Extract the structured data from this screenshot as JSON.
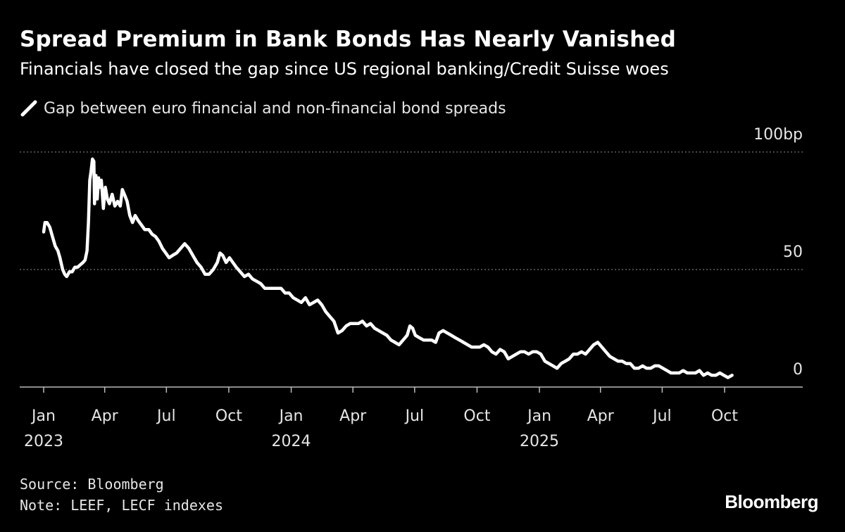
{
  "header": {
    "title": "Spread Premium in Bank Bonds Has Nearly Vanished",
    "subtitle": "Financials have closed the gap since US regional banking/Credit Suisse woes"
  },
  "footer": {
    "source": "Source: Bloomberg",
    "note": "Note: LEEF, LECF indexes",
    "brand": "Bloomberg"
  },
  "colors": {
    "background": "#000000",
    "line": "#ffffff",
    "grid": "#777777",
    "text": "#e6e6e6"
  },
  "chart_data": {
    "type": "line",
    "title": "Spread Premium in Bank Bonds Has Nearly Vanished",
    "subtitle": "Financials have closed the gap since US regional banking/Credit Suisse woes",
    "legend": "top-left",
    "grid": true,
    "ylim": [
      0,
      100
    ],
    "xlim": [
      "2023-01-01",
      "2025-12-01"
    ],
    "y_ticks": [
      {
        "value": 100,
        "label": "100bp"
      },
      {
        "value": 50,
        "label": "50"
      },
      {
        "value": 0,
        "label": "0"
      }
    ],
    "x_ticks": [
      {
        "date": "2023-01-01",
        "label": "Jan",
        "year": "2023"
      },
      {
        "date": "2023-04-01",
        "label": "Apr",
        "year": ""
      },
      {
        "date": "2023-07-01",
        "label": "Jul",
        "year": ""
      },
      {
        "date": "2023-10-01",
        "label": "Oct",
        "year": ""
      },
      {
        "date": "2024-01-01",
        "label": "Jan",
        "year": "2024"
      },
      {
        "date": "2024-04-01",
        "label": "Apr",
        "year": ""
      },
      {
        "date": "2024-07-01",
        "label": "Jul",
        "year": ""
      },
      {
        "date": "2024-10-01",
        "label": "Oct",
        "year": ""
      },
      {
        "date": "2025-01-01",
        "label": "Jan",
        "year": "2025"
      },
      {
        "date": "2025-04-01",
        "label": "Apr",
        "year": ""
      },
      {
        "date": "2025-07-01",
        "label": "Jul",
        "year": ""
      },
      {
        "date": "2025-10-01",
        "label": "Oct",
        "year": ""
      }
    ],
    "series": [
      {
        "name": "Gap between euro financial and non-financial bond spreads",
        "points": [
          [
            "2023-01-01",
            66
          ],
          [
            "2023-01-03",
            70
          ],
          [
            "2023-01-06",
            70
          ],
          [
            "2023-01-10",
            68
          ],
          [
            "2023-01-14",
            64
          ],
          [
            "2023-01-18",
            60
          ],
          [
            "2023-01-22",
            58
          ],
          [
            "2023-01-25",
            55
          ],
          [
            "2023-01-29",
            50
          ],
          [
            "2023-02-01",
            48
          ],
          [
            "2023-02-04",
            47
          ],
          [
            "2023-02-08",
            49
          ],
          [
            "2023-02-12",
            49
          ],
          [
            "2023-02-16",
            51
          ],
          [
            "2023-02-20",
            51
          ],
          [
            "2023-02-24",
            52
          ],
          [
            "2023-02-28",
            53
          ],
          [
            "2023-03-03",
            54
          ],
          [
            "2023-03-06",
            58
          ],
          [
            "2023-03-08",
            70
          ],
          [
            "2023-03-10",
            88
          ],
          [
            "2023-03-12",
            92
          ],
          [
            "2023-03-14",
            97
          ],
          [
            "2023-03-16",
            96
          ],
          [
            "2023-03-17",
            78
          ],
          [
            "2023-03-19",
            90
          ],
          [
            "2023-03-21",
            80
          ],
          [
            "2023-03-23",
            89
          ],
          [
            "2023-03-25",
            85
          ],
          [
            "2023-03-27",
            88
          ],
          [
            "2023-03-30",
            76
          ],
          [
            "2023-04-02",
            85
          ],
          [
            "2023-04-05",
            80
          ],
          [
            "2023-04-08",
            78
          ],
          [
            "2023-04-12",
            82
          ],
          [
            "2023-04-16",
            77
          ],
          [
            "2023-04-20",
            79
          ],
          [
            "2023-04-24",
            77
          ],
          [
            "2023-04-27",
            84
          ],
          [
            "2023-04-30",
            82
          ],
          [
            "2023-05-04",
            79
          ],
          [
            "2023-05-08",
            73
          ],
          [
            "2023-05-12",
            70
          ],
          [
            "2023-05-16",
            73
          ],
          [
            "2023-05-20",
            71
          ],
          [
            "2023-05-25",
            69
          ],
          [
            "2023-05-30",
            67
          ],
          [
            "2023-06-05",
            67
          ],
          [
            "2023-06-10",
            65
          ],
          [
            "2023-06-15",
            64
          ],
          [
            "2023-06-20",
            62
          ],
          [
            "2023-06-25",
            59
          ],
          [
            "2023-06-30",
            57
          ],
          [
            "2023-07-05",
            55
          ],
          [
            "2023-07-10",
            56
          ],
          [
            "2023-07-16",
            57
          ],
          [
            "2023-07-22",
            59
          ],
          [
            "2023-07-28",
            61
          ],
          [
            "2023-08-03",
            59
          ],
          [
            "2023-08-09",
            56
          ],
          [
            "2023-08-15",
            53
          ],
          [
            "2023-08-21",
            51
          ],
          [
            "2023-08-27",
            48
          ],
          [
            "2023-09-02",
            48
          ],
          [
            "2023-09-08",
            50
          ],
          [
            "2023-09-14",
            53
          ],
          [
            "2023-09-18",
            57
          ],
          [
            "2023-09-22",
            56
          ],
          [
            "2023-09-27",
            53
          ],
          [
            "2023-10-02",
            55
          ],
          [
            "2023-10-07",
            53
          ],
          [
            "2023-10-12",
            51
          ],
          [
            "2023-10-18",
            49
          ],
          [
            "2023-10-24",
            47
          ],
          [
            "2023-10-30",
            48
          ],
          [
            "2023-11-05",
            46
          ],
          [
            "2023-11-11",
            45
          ],
          [
            "2023-11-17",
            44
          ],
          [
            "2023-11-23",
            42
          ],
          [
            "2023-11-29",
            42
          ],
          [
            "2023-12-05",
            42
          ],
          [
            "2023-12-11",
            42
          ],
          [
            "2023-12-17",
            42
          ],
          [
            "2023-12-23",
            40
          ],
          [
            "2023-12-29",
            40
          ],
          [
            "2024-01-04",
            38
          ],
          [
            "2024-01-10",
            37
          ],
          [
            "2024-01-16",
            36
          ],
          [
            "2024-01-22",
            38
          ],
          [
            "2024-01-28",
            35
          ],
          [
            "2024-02-03",
            36
          ],
          [
            "2024-02-09",
            37
          ],
          [
            "2024-02-15",
            35
          ],
          [
            "2024-02-21",
            32
          ],
          [
            "2024-02-27",
            30
          ],
          [
            "2024-03-04",
            28
          ],
          [
            "2024-03-10",
            23
          ],
          [
            "2024-03-16",
            24
          ],
          [
            "2024-03-22",
            26
          ],
          [
            "2024-03-28",
            27
          ],
          [
            "2024-04-03",
            27
          ],
          [
            "2024-04-09",
            27
          ],
          [
            "2024-04-15",
            28
          ],
          [
            "2024-04-21",
            26
          ],
          [
            "2024-04-27",
            27
          ],
          [
            "2024-05-03",
            25
          ],
          [
            "2024-05-09",
            24
          ],
          [
            "2024-05-15",
            23
          ],
          [
            "2024-05-21",
            22
          ],
          [
            "2024-05-27",
            20
          ],
          [
            "2024-06-02",
            19
          ],
          [
            "2024-06-08",
            18
          ],
          [
            "2024-06-14",
            20
          ],
          [
            "2024-06-20",
            22
          ],
          [
            "2024-06-24",
            26
          ],
          [
            "2024-06-28",
            25
          ],
          [
            "2024-07-02",
            22
          ],
          [
            "2024-07-08",
            21
          ],
          [
            "2024-07-14",
            20
          ],
          [
            "2024-07-20",
            20
          ],
          [
            "2024-07-26",
            20
          ],
          [
            "2024-08-01",
            19
          ],
          [
            "2024-08-06",
            23
          ],
          [
            "2024-08-12",
            24
          ],
          [
            "2024-08-18",
            23
          ],
          [
            "2024-08-24",
            22
          ],
          [
            "2024-08-30",
            21
          ],
          [
            "2024-09-05",
            20
          ],
          [
            "2024-09-11",
            19
          ],
          [
            "2024-09-17",
            18
          ],
          [
            "2024-09-23",
            17
          ],
          [
            "2024-09-29",
            17
          ],
          [
            "2024-10-05",
            17
          ],
          [
            "2024-10-11",
            18
          ],
          [
            "2024-10-17",
            17
          ],
          [
            "2024-10-23",
            15
          ],
          [
            "2024-10-29",
            14
          ],
          [
            "2024-11-04",
            16
          ],
          [
            "2024-11-10",
            15
          ],
          [
            "2024-11-16",
            12
          ],
          [
            "2024-11-22",
            13
          ],
          [
            "2024-11-28",
            14
          ],
          [
            "2024-12-04",
            15
          ],
          [
            "2024-12-10",
            15
          ],
          [
            "2024-12-16",
            14
          ],
          [
            "2024-12-22",
            15
          ],
          [
            "2024-12-28",
            15
          ],
          [
            "2025-01-03",
            14
          ],
          [
            "2025-01-09",
            11
          ],
          [
            "2025-01-15",
            10
          ],
          [
            "2025-01-21",
            9
          ],
          [
            "2025-01-27",
            8
          ],
          [
            "2025-02-02",
            10
          ],
          [
            "2025-02-08",
            11
          ],
          [
            "2025-02-14",
            12
          ],
          [
            "2025-02-20",
            14
          ],
          [
            "2025-02-26",
            14
          ],
          [
            "2025-03-04",
            15
          ],
          [
            "2025-03-10",
            14
          ],
          [
            "2025-03-16",
            16
          ],
          [
            "2025-03-22",
            18
          ],
          [
            "2025-03-28",
            19
          ],
          [
            "2025-04-03",
            17
          ],
          [
            "2025-04-09",
            15
          ],
          [
            "2025-04-15",
            13
          ],
          [
            "2025-04-21",
            12
          ],
          [
            "2025-04-27",
            11
          ],
          [
            "2025-05-03",
            11
          ],
          [
            "2025-05-09",
            10
          ],
          [
            "2025-05-15",
            10
          ],
          [
            "2025-05-21",
            8
          ],
          [
            "2025-05-27",
            8
          ],
          [
            "2025-06-02",
            9
          ],
          [
            "2025-06-08",
            8
          ],
          [
            "2025-06-14",
            8
          ],
          [
            "2025-06-20",
            9
          ],
          [
            "2025-06-26",
            9
          ],
          [
            "2025-07-02",
            8
          ],
          [
            "2025-07-08",
            7
          ],
          [
            "2025-07-14",
            6
          ],
          [
            "2025-07-20",
            6
          ],
          [
            "2025-07-26",
            6
          ],
          [
            "2025-08-01",
            7
          ],
          [
            "2025-08-07",
            6
          ],
          [
            "2025-08-13",
            6
          ],
          [
            "2025-08-19",
            6
          ],
          [
            "2025-08-25",
            7
          ],
          [
            "2025-08-31",
            5
          ],
          [
            "2025-09-06",
            6
          ],
          [
            "2025-09-12",
            5
          ],
          [
            "2025-09-18",
            5
          ],
          [
            "2025-09-24",
            6
          ],
          [
            "2025-09-30",
            5
          ],
          [
            "2025-10-06",
            4
          ],
          [
            "2025-10-12",
            5
          ]
        ]
      }
    ]
  }
}
